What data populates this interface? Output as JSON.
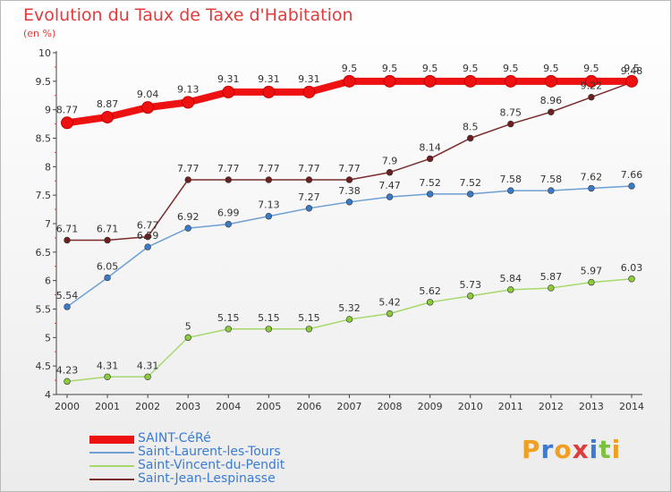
{
  "header": {
    "title": "Evolution du Taux de Taxe d'Habitation",
    "subtitle": "(en %)"
  },
  "logo": {
    "text": "Proxiti",
    "letters": [
      {
        "ch": "P",
        "color": "#f0a020"
      },
      {
        "ch": "r",
        "color": "#3a7bd5"
      },
      {
        "ch": "o",
        "color": "#f0a020"
      },
      {
        "ch": "x",
        "color": "#e03c3c"
      },
      {
        "ch": "i",
        "color": "#3a7bd5"
      },
      {
        "ch": "t",
        "color": "#7cc242"
      },
      {
        "ch": "i",
        "color": "#f0a020"
      }
    ]
  },
  "chart_data": {
    "type": "line",
    "title": "Evolution du Taux de Taxe d'Habitation",
    "ylabel": "(en %)",
    "xlabel": "",
    "x": [
      "2000",
      "2001",
      "2002",
      "2003",
      "2004",
      "2005",
      "2006",
      "2007",
      "2008",
      "2009",
      "2010",
      "2011",
      "2012",
      "2013",
      "2014"
    ],
    "ylim": [
      4,
      10
    ],
    "yticks": [
      "4",
      "4.5",
      "5",
      "5.5",
      "6",
      "6.5",
      "7",
      "7.5",
      "8",
      "8.5",
      "9",
      "9.5",
      "10"
    ],
    "grid": false,
    "legend_position": "bottom-left",
    "series": [
      {
        "name": "SAINT-CéRé",
        "color": "#ee1111",
        "marker": "#ee1111",
        "width": 8,
        "values": [
          8.77,
          8.87,
          9.04,
          9.13,
          9.31,
          9.31,
          9.31,
          9.5,
          9.5,
          9.5,
          9.5,
          9.5,
          9.5,
          9.5,
          9.5
        ],
        "labels": [
          "8.77",
          "8.87",
          "9.04",
          "9.13",
          "9.31",
          "9.31",
          "9.31",
          "9.5",
          "9.5",
          "9.5",
          "9.5",
          "9.5",
          "9.5",
          "9.5",
          "9.5"
        ]
      },
      {
        "name": "Saint-Laurent-les-Tours",
        "color": "#6d9fd2",
        "marker": "#3a7bc8",
        "width": 1.5,
        "values": [
          5.54,
          6.05,
          6.59,
          6.92,
          6.99,
          7.13,
          7.27,
          7.38,
          7.47,
          7.52,
          7.52,
          7.58,
          7.58,
          7.62,
          7.66
        ],
        "labels": [
          "5.54",
          "6.05",
          "6.59",
          "6.92",
          "6.99",
          "7.13",
          "7.27",
          "7.38",
          "7.47",
          "7.52",
          "7.52",
          "7.58",
          "7.58",
          "7.62",
          "7.66"
        ]
      },
      {
        "name": "Saint-Vincent-du-Pendit",
        "color": "#a7d86d",
        "marker": "#8ccc3a",
        "width": 1.5,
        "values": [
          4.23,
          4.31,
          4.31,
          5,
          5.15,
          5.15,
          5.15,
          5.32,
          5.42,
          5.62,
          5.73,
          5.84,
          5.87,
          5.97,
          6.03
        ],
        "labels": [
          "4.23",
          "4.31",
          "4.31",
          "5",
          "5.15",
          "5.15",
          "5.15",
          "5.32",
          "5.42",
          "5.62",
          "5.73",
          "5.84",
          "5.87",
          "5.97",
          "6.03"
        ]
      },
      {
        "name": "Saint-Jean-Lespinasse",
        "color": "#7a2c2c",
        "marker": "#6e1f1f",
        "width": 1.5,
        "values": [
          6.71,
          6.71,
          6.77,
          7.77,
          7.77,
          7.77,
          7.77,
          7.77,
          7.9,
          8.14,
          8.5,
          8.75,
          8.96,
          9.22,
          9.48
        ],
        "labels": [
          "6.71",
          "6.71",
          "6.77",
          "7.77",
          "7.77",
          "7.77",
          "7.77",
          "7.77",
          "7.9",
          "8.14",
          "8.5",
          "8.75",
          "8.96",
          "9.22",
          "9.48"
        ]
      }
    ]
  }
}
